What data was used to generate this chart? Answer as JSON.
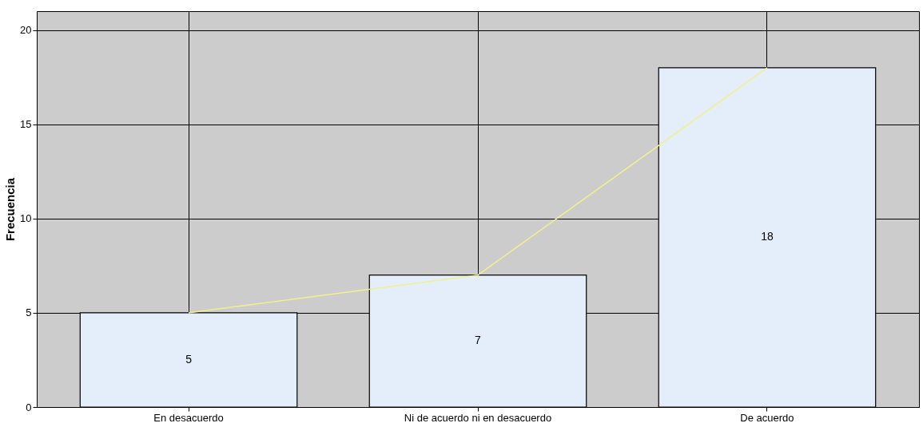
{
  "chart_data": {
    "type": "bar",
    "ylabel": "Frecuencia",
    "categories": [
      "En desacuerdo",
      "Ni de acuerdo ni en desacuerdo",
      "De acuerdo"
    ],
    "series": [
      {
        "color": "#e3eefa",
        "values": [
          5,
          7,
          18
        ],
        "value_labels": [
          "5",
          "7",
          "18"
        ]
      },
      {
        "type": "line",
        "color": "#f0f08c",
        "values": [
          5,
          7,
          18
        ]
      }
    ],
    "ylim": [
      0,
      21
    ],
    "yticks": [
      0,
      5,
      10,
      15,
      20
    ],
    "grid": true
  }
}
